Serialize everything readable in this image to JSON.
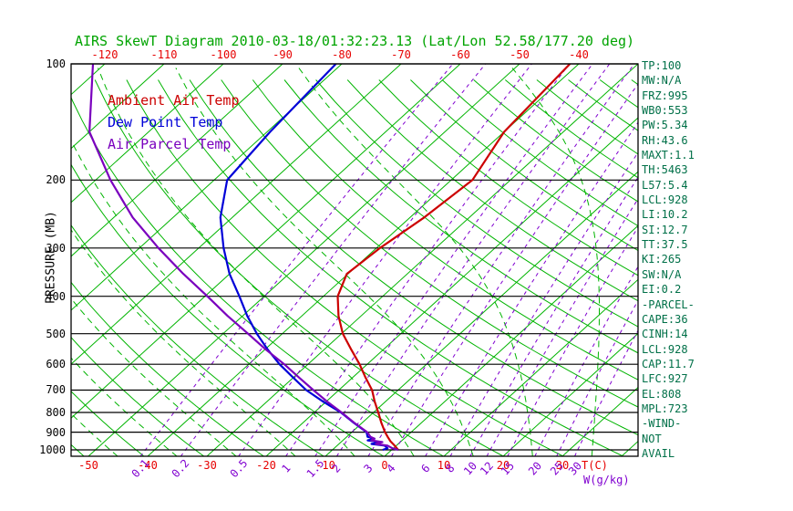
{
  "title": "AIRS SkewT Diagram 2010-03-18/01:32:23.13 (Lat/Lon 52.58/177.20 deg)",
  "colors": {
    "title_green": "#00a400",
    "grid_green": "#00b400",
    "axis_red": "#e60000",
    "mixing_purple": "#8000d0",
    "stats_green": "#007048",
    "ambient_red": "#cc0000",
    "dewpoint_blue": "#0000d8",
    "parcel_purple": "#7a00be"
  },
  "axes": {
    "y_label": "PRESSURE (MB)",
    "x_label": "T(C)",
    "mixing_label": "W(g/kg)",
    "pressure_ticks": [
      100,
      200,
      300,
      400,
      500,
      600,
      700,
      800,
      900,
      1000
    ],
    "top_temp_ticks": [
      -120,
      -110,
      -100,
      -90,
      -80,
      -70,
      -60,
      -50,
      -40
    ],
    "bottom_temp_ticks": [
      -50,
      -40,
      -30,
      -20,
      -10,
      0,
      10,
      20,
      30
    ],
    "mixing_ratio_ticks": [
      0.1,
      0.2,
      0.5,
      1,
      1.5,
      2,
      3,
      4,
      6,
      8,
      10,
      12,
      15,
      20,
      25,
      30
    ]
  },
  "stats": [
    "TP:100",
    "MW:N/A",
    "FRZ:995",
    "WB0:553",
    "PW:5.34",
    "RH:43.6",
    "MAXT:1.1",
    "TH:5463",
    "L57:5.4",
    "LCL:928",
    "LI:10.2",
    "SI:12.7",
    "TT:37.5",
    "KI:265",
    "SW:N/A",
    "EI:0.2",
    "-PARCEL-",
    "CAPE:36",
    "CINH:14",
    "LCL:928",
    "CAP:11.7",
    "LFC:927",
    "EL:808",
    "MPL:723",
    "-WIND-",
    "NOT",
    "AVAIL"
  ],
  "chart_data": {
    "type": "line",
    "subtype": "skewt_log_p",
    "title": "AIRS SkewT Diagram 2010-03-18/01:32:23.13 (Lat/Lon 52.58/177.20 deg)",
    "xlabel": "T(C)",
    "ylabel": "PRESSURE (MB)",
    "y_scale": "log",
    "y_range_mb": [
      100,
      1040
    ],
    "x_top_range_c": [
      -120,
      -40
    ],
    "grid": {
      "isotherms_c": {
        "min": -160,
        "max": 40,
        "step": 10
      },
      "dry_adiabats_k": {
        "min": 220,
        "max": 470,
        "step": 10
      },
      "moist_adiabats_c": {
        "min": -55,
        "max": 45,
        "step": 10
      },
      "mixing_ratio_g_kg": [
        0.1,
        0.2,
        0.5,
        1,
        1.5,
        2,
        3,
        4,
        6,
        8,
        10,
        12,
        15,
        20,
        25,
        30
      ],
      "pressure_lines_mb": [
        100,
        200,
        300,
        400,
        500,
        600,
        700,
        800,
        900,
        1000
      ]
    },
    "series": [
      {
        "name": "Ambient Air Temp",
        "color": "#cc0000",
        "points": [
          [
            1000,
            1.1
          ],
          [
            975,
            -0.3
          ],
          [
            950,
            -1.8
          ],
          [
            925,
            -3.1
          ],
          [
            900,
            -4.4
          ],
          [
            850,
            -6.8
          ],
          [
            800,
            -9.2
          ],
          [
            750,
            -11.8
          ],
          [
            700,
            -14.4
          ],
          [
            650,
            -17.8
          ],
          [
            600,
            -21.3
          ],
          [
            550,
            -25.4
          ],
          [
            500,
            -29.8
          ],
          [
            450,
            -33.8
          ],
          [
            400,
            -37.6
          ],
          [
            350,
            -40.2
          ],
          [
            300,
            -39.4
          ],
          [
            250,
            -37.6
          ],
          [
            200,
            -36.4
          ],
          [
            150,
            -40.0
          ],
          [
            100,
            -41.5
          ]
        ]
      },
      {
        "name": "Dew Point Temp",
        "color": "#0000d8",
        "points": [
          [
            1000,
            -1.5
          ],
          [
            990,
            -1.0
          ],
          [
            975,
            -2.0
          ],
          [
            965,
            -4.5
          ],
          [
            955,
            -3.2
          ],
          [
            945,
            -5.8
          ],
          [
            935,
            -5.0
          ],
          [
            925,
            -6.5
          ],
          [
            900,
            -7.5
          ],
          [
            850,
            -11.5
          ],
          [
            800,
            -15.5
          ],
          [
            750,
            -20.5
          ],
          [
            700,
            -25.5
          ],
          [
            650,
            -30.0
          ],
          [
            600,
            -34.8
          ],
          [
            550,
            -39.5
          ],
          [
            500,
            -44.3
          ],
          [
            450,
            -49.2
          ],
          [
            400,
            -54.2
          ],
          [
            350,
            -60.0
          ],
          [
            300,
            -65.8
          ],
          [
            250,
            -72.0
          ],
          [
            200,
            -77.8
          ],
          [
            150,
            -79.5
          ],
          [
            100,
            -81.0
          ]
        ]
      },
      {
        "name": "Air Parcel Temp",
        "color": "#7a00be",
        "points": [
          [
            1000,
            1.1
          ],
          [
            990,
            -0.2
          ],
          [
            975,
            -1.5
          ],
          [
            965,
            -3.8
          ],
          [
            955,
            -3.0
          ],
          [
            945,
            -5.2
          ],
          [
            935,
            -5.0
          ],
          [
            925,
            -6.0
          ],
          [
            900,
            -7.4
          ],
          [
            850,
            -11.4
          ],
          [
            800,
            -15.4
          ],
          [
            750,
            -19.8
          ],
          [
            700,
            -24.3
          ],
          [
            650,
            -29.0
          ],
          [
            600,
            -34.0
          ],
          [
            550,
            -39.8
          ],
          [
            500,
            -45.8
          ],
          [
            450,
            -52.5
          ],
          [
            400,
            -59.6
          ],
          [
            350,
            -67.8
          ],
          [
            300,
            -76.8
          ],
          [
            250,
            -86.8
          ],
          [
            200,
            -97.5
          ],
          [
            150,
            -110.0
          ],
          [
            100,
            -122.0
          ]
        ]
      }
    ]
  }
}
